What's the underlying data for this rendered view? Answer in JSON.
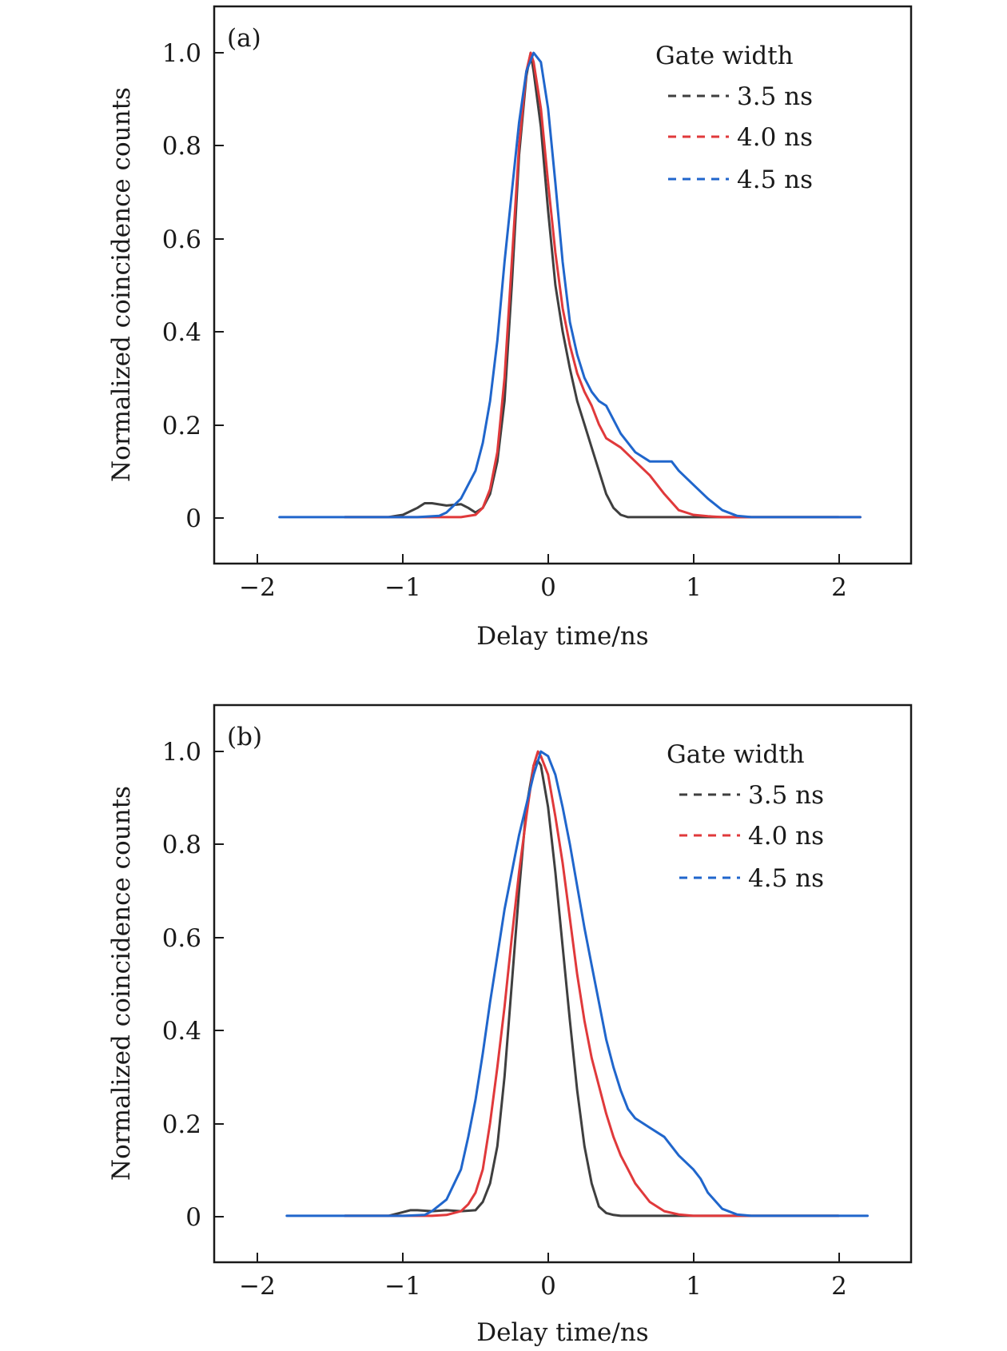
{
  "colors": {
    "s35": "#3f3f3f",
    "s40": "#e0393b",
    "s45": "#2066cc",
    "frame": "#1a1a1a"
  },
  "chart_data": [
    {
      "type": "line",
      "panel_label": "(a)",
      "xlabel": "Delay time/ns",
      "ylabel": "Normalized coincidence counts",
      "xlim": [
        -2.3,
        2.5
      ],
      "ylim": [
        -0.1,
        1.1
      ],
      "xticks": [
        -2,
        -1,
        0,
        1,
        2
      ],
      "xtick_labels": [
        "−2",
        "−1",
        "0",
        "1",
        "2"
      ],
      "yticks": [
        0,
        0.2,
        0.4,
        0.6,
        0.8,
        1.0
      ],
      "ytick_labels": [
        "0",
        "0.2",
        "0.4",
        "0.6",
        "0.8",
        "1.0"
      ],
      "grid": false,
      "legend": {
        "title": "Gate width",
        "position": "top-right"
      },
      "series": [
        {
          "name": "3.5 ns",
          "color": "#3f3f3f",
          "x": [
            -1.4,
            -1.1,
            -1.0,
            -0.9,
            -0.85,
            -0.8,
            -0.7,
            -0.6,
            -0.55,
            -0.5,
            -0.45,
            -0.4,
            -0.35,
            -0.3,
            -0.25,
            -0.2,
            -0.15,
            -0.12,
            -0.1,
            -0.05,
            0,
            0.05,
            0.1,
            0.15,
            0.2,
            0.25,
            0.3,
            0.35,
            0.4,
            0.45,
            0.5,
            0.55,
            0.6,
            0.7,
            0.8,
            1.0,
            1.2,
            1.4,
            1.6,
            2.0
          ],
          "y": [
            0,
            0,
            0.005,
            0.02,
            0.03,
            0.03,
            0.025,
            0.028,
            0.02,
            0.01,
            0.02,
            0.05,
            0.12,
            0.25,
            0.5,
            0.78,
            0.95,
            1.0,
            0.96,
            0.84,
            0.66,
            0.5,
            0.4,
            0.32,
            0.25,
            0.2,
            0.15,
            0.1,
            0.05,
            0.02,
            0.005,
            0,
            0,
            0,
            0,
            0,
            0,
            0,
            0,
            0
          ]
        },
        {
          "name": "4.0 ns",
          "color": "#e0393b",
          "x": [
            -1.4,
            -1.0,
            -0.8,
            -0.6,
            -0.5,
            -0.45,
            -0.4,
            -0.35,
            -0.3,
            -0.25,
            -0.2,
            -0.15,
            -0.12,
            -0.1,
            -0.05,
            0,
            0.05,
            0.1,
            0.15,
            0.2,
            0.25,
            0.3,
            0.35,
            0.4,
            0.5,
            0.6,
            0.7,
            0.8,
            0.9,
            1.0,
            1.1,
            1.2,
            1.3,
            1.4,
            1.6,
            2.0,
            2.15
          ],
          "y": [
            0,
            0,
            0,
            0,
            0.005,
            0.02,
            0.06,
            0.14,
            0.3,
            0.55,
            0.8,
            0.96,
            1.0,
            0.98,
            0.88,
            0.72,
            0.57,
            0.45,
            0.37,
            0.31,
            0.27,
            0.24,
            0.2,
            0.17,
            0.15,
            0.12,
            0.09,
            0.05,
            0.015,
            0.005,
            0.002,
            0,
            0,
            0,
            0,
            0,
            0
          ]
        },
        {
          "name": "4.5 ns",
          "color": "#2066cc",
          "x": [
            -1.85,
            -1.2,
            -0.9,
            -0.75,
            -0.7,
            -0.6,
            -0.5,
            -0.45,
            -0.4,
            -0.35,
            -0.3,
            -0.25,
            -0.2,
            -0.15,
            -0.1,
            -0.05,
            0,
            0.05,
            0.1,
            0.15,
            0.2,
            0.25,
            0.3,
            0.35,
            0.4,
            0.5,
            0.6,
            0.7,
            0.8,
            0.85,
            0.9,
            1.0,
            1.1,
            1.2,
            1.3,
            1.4,
            1.6,
            2.0,
            2.15
          ],
          "y": [
            0,
            0,
            0,
            0.003,
            0.01,
            0.04,
            0.1,
            0.16,
            0.25,
            0.38,
            0.55,
            0.7,
            0.85,
            0.96,
            1.0,
            0.98,
            0.88,
            0.72,
            0.55,
            0.42,
            0.35,
            0.3,
            0.27,
            0.25,
            0.24,
            0.18,
            0.14,
            0.12,
            0.12,
            0.12,
            0.1,
            0.07,
            0.04,
            0.015,
            0.003,
            0,
            0,
            0,
            0
          ]
        }
      ]
    },
    {
      "type": "line",
      "panel_label": "(b)",
      "xlabel": "Delay time/ns",
      "ylabel": "Normalized coincidence counts",
      "xlim": [
        -2.3,
        2.5
      ],
      "ylim": [
        -0.1,
        1.1
      ],
      "xticks": [
        -2,
        -1,
        0,
        1,
        2
      ],
      "xtick_labels": [
        "−2",
        "−1",
        "0",
        "1",
        "2"
      ],
      "yticks": [
        0,
        0.2,
        0.4,
        0.6,
        0.8,
        1.0
      ],
      "ytick_labels": [
        "0",
        "0.2",
        "0.4",
        "0.6",
        "0.8",
        "1.0"
      ],
      "grid": false,
      "legend": {
        "title": "Gate width",
        "position": "top-right"
      },
      "series": [
        {
          "name": "3.5 ns",
          "color": "#3f3f3f",
          "x": [
            -1.4,
            -1.1,
            -1.0,
            -0.95,
            -0.9,
            -0.8,
            -0.7,
            -0.6,
            -0.5,
            -0.45,
            -0.4,
            -0.35,
            -0.3,
            -0.25,
            -0.2,
            -0.15,
            -0.1,
            -0.07,
            -0.05,
            0,
            0.05,
            0.1,
            0.15,
            0.2,
            0.25,
            0.3,
            0.35,
            0.4,
            0.45,
            0.5,
            0.6,
            0.8,
            1.0,
            1.4,
            2.0
          ],
          "y": [
            0,
            0,
            0.008,
            0.012,
            0.012,
            0.01,
            0.012,
            0.01,
            0.012,
            0.03,
            0.07,
            0.15,
            0.3,
            0.5,
            0.7,
            0.88,
            0.97,
            0.98,
            0.97,
            0.88,
            0.74,
            0.58,
            0.42,
            0.27,
            0.15,
            0.07,
            0.02,
            0.006,
            0.002,
            0,
            0,
            0,
            0,
            0,
            0
          ]
        },
        {
          "name": "4.0 ns",
          "color": "#e0393b",
          "x": [
            -1.4,
            -1.0,
            -0.8,
            -0.7,
            -0.6,
            -0.55,
            -0.5,
            -0.45,
            -0.4,
            -0.35,
            -0.3,
            -0.25,
            -0.2,
            -0.15,
            -0.1,
            -0.07,
            -0.05,
            0,
            0.05,
            0.1,
            0.15,
            0.2,
            0.25,
            0.3,
            0.35,
            0.4,
            0.45,
            0.5,
            0.55,
            0.6,
            0.7,
            0.8,
            0.9,
            1.0,
            1.2,
            1.4,
            2.0
          ],
          "y": [
            0,
            0,
            0,
            0.002,
            0.01,
            0.025,
            0.05,
            0.1,
            0.2,
            0.32,
            0.45,
            0.6,
            0.74,
            0.86,
            0.97,
            1.0,
            0.99,
            0.95,
            0.86,
            0.76,
            0.64,
            0.52,
            0.42,
            0.34,
            0.28,
            0.22,
            0.17,
            0.13,
            0.1,
            0.07,
            0.03,
            0.01,
            0.003,
            0,
            0,
            0,
            0
          ]
        },
        {
          "name": "4.5 ns",
          "color": "#2066cc",
          "x": [
            -1.8,
            -1.2,
            -1.0,
            -0.85,
            -0.8,
            -0.7,
            -0.6,
            -0.55,
            -0.5,
            -0.45,
            -0.4,
            -0.35,
            -0.3,
            -0.2,
            -0.1,
            -0.05,
            0,
            0.05,
            0.1,
            0.15,
            0.2,
            0.25,
            0.3,
            0.35,
            0.4,
            0.45,
            0.5,
            0.55,
            0.6,
            0.7,
            0.8,
            0.9,
            1.0,
            1.05,
            1.1,
            1.2,
            1.3,
            1.4,
            1.6,
            2.0,
            2.2
          ],
          "y": [
            0,
            0,
            0,
            0.002,
            0.01,
            0.035,
            0.1,
            0.17,
            0.25,
            0.35,
            0.46,
            0.56,
            0.66,
            0.82,
            0.95,
            1.0,
            0.99,
            0.95,
            0.88,
            0.8,
            0.71,
            0.62,
            0.54,
            0.46,
            0.38,
            0.32,
            0.27,
            0.23,
            0.21,
            0.19,
            0.17,
            0.13,
            0.1,
            0.08,
            0.05,
            0.015,
            0.003,
            0,
            0,
            0,
            0
          ]
        }
      ]
    }
  ]
}
